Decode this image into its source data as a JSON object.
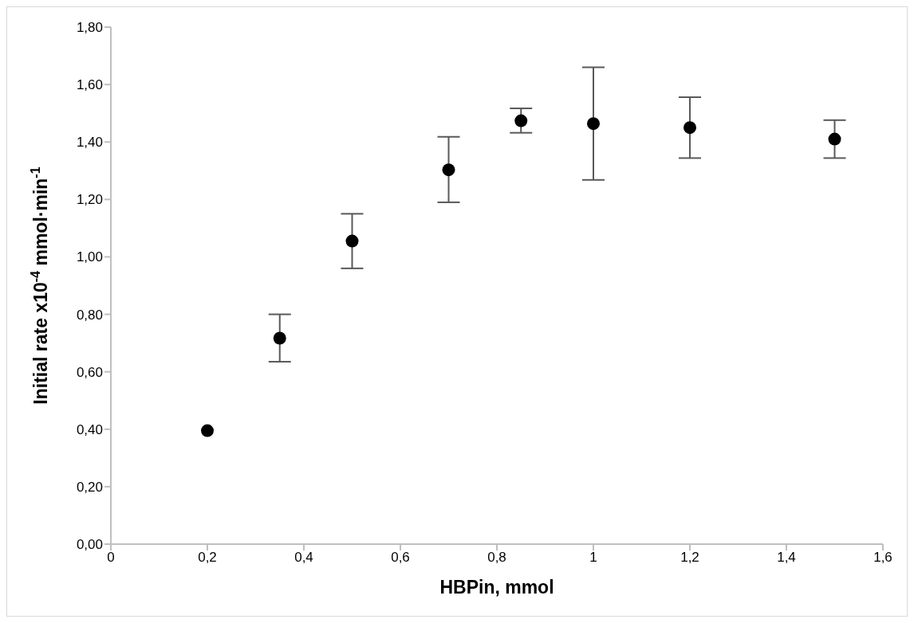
{
  "chart_data": {
    "type": "scatter",
    "xlabel": "HBPin, mmol",
    "ylabel": "Initial rate x10$^{-4}$ mmol·min$^{-1}$",
    "x": [
      0.2,
      0.35,
      0.5,
      0.7,
      0.85,
      1.0,
      1.2,
      1.5
    ],
    "values": [
      0.395,
      0.717,
      1.055,
      1.303,
      1.474,
      1.464,
      1.45,
      1.41
    ],
    "errors": [
      null,
      [
        0.635,
        0.8
      ],
      [
        0.96,
        1.15
      ],
      [
        1.19,
        1.418
      ],
      [
        1.432,
        1.517
      ],
      [
        1.268,
        1.66
      ],
      [
        1.344,
        1.556
      ],
      [
        1.344,
        1.476
      ]
    ],
    "color": "#000000",
    "marker": "circle",
    "grid": false,
    "legend": false,
    "xlim": [
      0,
      1.6
    ],
    "xticks": [
      0,
      {
        "value": 0.2,
        "label": "0,2"
      },
      {
        "value": 0.4,
        "label": "0,4"
      },
      {
        "value": 0.6,
        "label": "0,6"
      },
      {
        "value": 0.8,
        "label": "0,8"
      },
      1,
      {
        "value": 1.2,
        "label": "1,2"
      },
      {
        "value": 1.4,
        "label": "1,4"
      },
      {
        "value": 1.6,
        "label": "1,6"
      }
    ],
    "ylim": [
      0,
      1.8
    ],
    "yticks": [
      {
        "value": 0,
        "label": "0,00"
      },
      {
        "value": 0.2,
        "label": "0,20"
      },
      {
        "value": 0.4,
        "label": "0,40"
      },
      {
        "value": 0.6,
        "label": "0,60"
      },
      {
        "value": 0.8,
        "label": "0,80"
      },
      {
        "value": 1,
        "label": "1,00"
      },
      {
        "value": 1.2,
        "label": "1,20"
      },
      {
        "value": 1.4,
        "label": "1,40"
      },
      {
        "value": 1.6,
        "label": "1,60"
      },
      {
        "value": 1.8,
        "label": "1,80"
      }
    ]
  }
}
